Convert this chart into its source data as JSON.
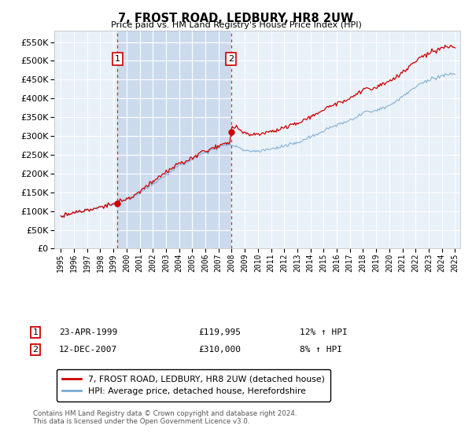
{
  "title": "7, FROST ROAD, LEDBURY, HR8 2UW",
  "subtitle": "Price paid vs. HM Land Registry's House Price Index (HPI)",
  "background_color": "#ffffff",
  "plot_bg_color": "#e8f0f8",
  "plot_bg_shade": "#ccdaee",
  "grid_color": "#ffffff",
  "red_line_color": "#cc0000",
  "blue_line_color": "#7aaad0",
  "sale1_year": 1999.31,
  "sale1_price": 119995,
  "sale2_year": 2007.95,
  "sale2_price": 310000,
  "ylim_min": 0,
  "ylim_max": 580000,
  "yticks": [
    0,
    50000,
    100000,
    150000,
    200000,
    250000,
    300000,
    350000,
    400000,
    450000,
    500000,
    550000
  ],
  "legend_red_label": "7, FROST ROAD, LEDBURY, HR8 2UW (detached house)",
  "legend_blue_label": "HPI: Average price, detached house, Herefordshire",
  "footer_text": "Contains HM Land Registry data © Crown copyright and database right 2024.\nThis data is licensed under the Open Government Licence v3.0.",
  "vline_color": "#cc0000",
  "sale1_date": "23-APR-1999",
  "sale1_hpi_text": "12% ↑ HPI",
  "sale2_date": "12-DEC-2007",
  "sale2_hpi_text": "8% ↑ HPI"
}
